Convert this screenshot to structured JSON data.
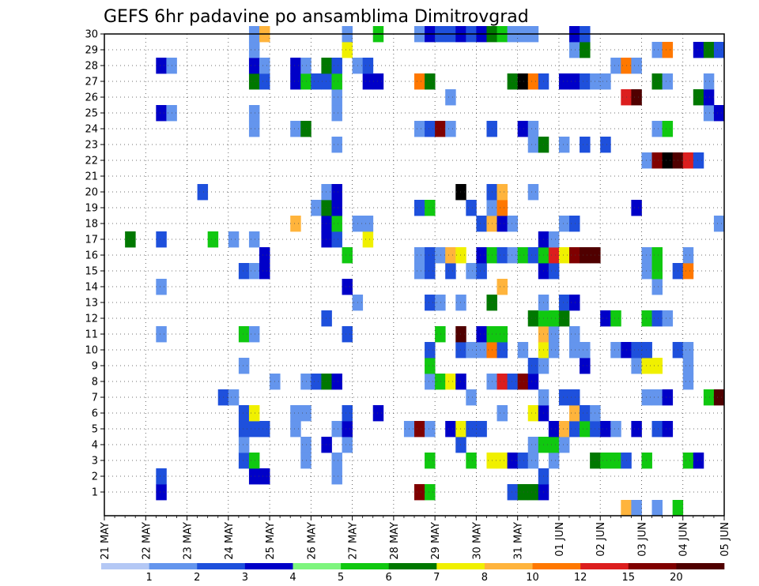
{
  "chart_data": {
    "type": "heatmap",
    "title": "GEFS 6hr padavine po ansamblima Dimitrovgrad",
    "xlabel": "",
    "ylabel": "",
    "x_ticks": [
      "21 MAY",
      "22 MAY",
      "23 MAY",
      "24 MAY",
      "25 MAY",
      "26 MAY",
      "27 MAY",
      "28 MAY",
      "29 MAY",
      "30 MAY",
      "31 MAY",
      "01 JUN",
      "02 JUN",
      "03 JUN",
      "04 JUN",
      "05 JUN"
    ],
    "y_ticks": [
      1,
      2,
      3,
      4,
      5,
      6,
      7,
      8,
      9,
      10,
      11,
      12,
      13,
      14,
      15,
      16,
      17,
      18,
      19,
      20,
      21,
      22,
      23,
      24,
      25,
      26,
      27,
      28,
      29,
      30
    ],
    "x_range_steps": [
      0,
      60
    ],
    "y_range": [
      0,
      30
    ],
    "legend_levels": [
      "1",
      "2",
      "3",
      "4",
      "5",
      "6",
      "7",
      "8",
      "10",
      "12",
      "15",
      "20"
    ],
    "legend_colors": [
      "#b4c8f5",
      "#6495ed",
      "#1e50dc",
      "#0000c8",
      "#7ef57e",
      "#10c810",
      "#007800",
      "#f0f000",
      "#ffb43c",
      "#ff7800",
      "#dc1e1e",
      "#800000",
      "#500000"
    ],
    "grid": true,
    "cells": [
      [
        6,
        1,
        3
      ],
      [
        31,
        1,
        11
      ],
      [
        32,
        1,
        5
      ],
      [
        40,
        1,
        2
      ],
      [
        41,
        1,
        6
      ],
      [
        42,
        1,
        6
      ],
      [
        43,
        1,
        3
      ],
      [
        6,
        2,
        2
      ],
      [
        15,
        2,
        3
      ],
      [
        16,
        2,
        3
      ],
      [
        23,
        2,
        1
      ],
      [
        43,
        2,
        2
      ],
      [
        14,
        3,
        2
      ],
      [
        15,
        3,
        5
      ],
      [
        20,
        3,
        1
      ],
      [
        23,
        3,
        1
      ],
      [
        32,
        3,
        5
      ],
      [
        36,
        3,
        5
      ],
      [
        38,
        3,
        7
      ],
      [
        39,
        3,
        7
      ],
      [
        40,
        3,
        3
      ],
      [
        41,
        3,
        2
      ],
      [
        42,
        3,
        1
      ],
      [
        44,
        3,
        1
      ],
      [
        48,
        3,
        6
      ],
      [
        49,
        3,
        5
      ],
      [
        50,
        3,
        5
      ],
      [
        51,
        3,
        2
      ],
      [
        53,
        3,
        5
      ],
      [
        57,
        3,
        5
      ],
      [
        58,
        3,
        3
      ],
      [
        14,
        4,
        1
      ],
      [
        20,
        4,
        1
      ],
      [
        22,
        4,
        3
      ],
      [
        24,
        4,
        1
      ],
      [
        35,
        4,
        2
      ],
      [
        42,
        4,
        1
      ],
      [
        43,
        4,
        5
      ],
      [
        44,
        4,
        5
      ],
      [
        45,
        4,
        1
      ],
      [
        14,
        5,
        2
      ],
      [
        15,
        5,
        2
      ],
      [
        16,
        5,
        2
      ],
      [
        19,
        5,
        1
      ],
      [
        23,
        5,
        1
      ],
      [
        24,
        5,
        3
      ],
      [
        30,
        5,
        1
      ],
      [
        31,
        5,
        11
      ],
      [
        32,
        5,
        1
      ],
      [
        34,
        5,
        3
      ],
      [
        35,
        5,
        7
      ],
      [
        36,
        5,
        2
      ],
      [
        37,
        5,
        2
      ],
      [
        44,
        5,
        3
      ],
      [
        45,
        5,
        8
      ],
      [
        46,
        5,
        2
      ],
      [
        47,
        5,
        5
      ],
      [
        48,
        5,
        2
      ],
      [
        49,
        5,
        3
      ],
      [
        50,
        5,
        1
      ],
      [
        52,
        5,
        3
      ],
      [
        54,
        5,
        2
      ],
      [
        55,
        5,
        3
      ],
      [
        14,
        6,
        2
      ],
      [
        15,
        6,
        7
      ],
      [
        19,
        6,
        1
      ],
      [
        20,
        6,
        1
      ],
      [
        24,
        6,
        2
      ],
      [
        27,
        6,
        3
      ],
      [
        39,
        6,
        1
      ],
      [
        42,
        6,
        7
      ],
      [
        43,
        6,
        3
      ],
      [
        46,
        6,
        8
      ],
      [
        47,
        6,
        2
      ],
      [
        48,
        6,
        1
      ],
      [
        12,
        7,
        2
      ],
      [
        13,
        7,
        1
      ],
      [
        36,
        7,
        1
      ],
      [
        43,
        7,
        1
      ],
      [
        45,
        7,
        2
      ],
      [
        46,
        7,
        2
      ],
      [
        53,
        7,
        1
      ],
      [
        54,
        7,
        1
      ],
      [
        55,
        7,
        3
      ],
      [
        59,
        7,
        5
      ],
      [
        60,
        7,
        12
      ],
      [
        17,
        8,
        1
      ],
      [
        20,
        8,
        1
      ],
      [
        21,
        8,
        2
      ],
      [
        22,
        8,
        6
      ],
      [
        23,
        8,
        3
      ],
      [
        32,
        8,
        1
      ],
      [
        33,
        8,
        5
      ],
      [
        34,
        8,
        7
      ],
      [
        35,
        8,
        3
      ],
      [
        38,
        8,
        1
      ],
      [
        39,
        8,
        10
      ],
      [
        40,
        8,
        2
      ],
      [
        41,
        8,
        11
      ],
      [
        42,
        8,
        3
      ],
      [
        57,
        8,
        1
      ],
      [
        14,
        9,
        1
      ],
      [
        32,
        9,
        5
      ],
      [
        42,
        9,
        2
      ],
      [
        43,
        9,
        1
      ],
      [
        47,
        9,
        3
      ],
      [
        52,
        9,
        1
      ],
      [
        53,
        9,
        7
      ],
      [
        54,
        9,
        7
      ],
      [
        57,
        9,
        1
      ],
      [
        32,
        10,
        2
      ],
      [
        35,
        10,
        2
      ],
      [
        36,
        10,
        1
      ],
      [
        37,
        10,
        1
      ],
      [
        38,
        10,
        9
      ],
      [
        39,
        10,
        2
      ],
      [
        41,
        10,
        1
      ],
      [
        43,
        10,
        7
      ],
      [
        44,
        10,
        1
      ],
      [
        46,
        10,
        1
      ],
      [
        47,
        10,
        1
      ],
      [
        50,
        10,
        1
      ],
      [
        51,
        10,
        3
      ],
      [
        52,
        10,
        2
      ],
      [
        53,
        10,
        2
      ],
      [
        56,
        10,
        2
      ],
      [
        57,
        10,
        1
      ],
      [
        6,
        11,
        1
      ],
      [
        14,
        11,
        5
      ],
      [
        15,
        11,
        1
      ],
      [
        24,
        11,
        2
      ],
      [
        33,
        11,
        5
      ],
      [
        35,
        11,
        12
      ],
      [
        37,
        11,
        3
      ],
      [
        38,
        11,
        5
      ],
      [
        39,
        11,
        5
      ],
      [
        43,
        11,
        8
      ],
      [
        44,
        11,
        1
      ],
      [
        46,
        11,
        1
      ],
      [
        22,
        12,
        2
      ],
      [
        42,
        12,
        6
      ],
      [
        43,
        12,
        5
      ],
      [
        44,
        12,
        5
      ],
      [
        45,
        12,
        6
      ],
      [
        49,
        12,
        3
      ],
      [
        50,
        12,
        5
      ],
      [
        53,
        12,
        5
      ],
      [
        54,
        12,
        2
      ],
      [
        55,
        12,
        1
      ],
      [
        25,
        13,
        1
      ],
      [
        32,
        13,
        2
      ],
      [
        33,
        13,
        1
      ],
      [
        35,
        13,
        1
      ],
      [
        38,
        13,
        6
      ],
      [
        43,
        13,
        1
      ],
      [
        45,
        13,
        2
      ],
      [
        46,
        13,
        3
      ],
      [
        6,
        14,
        1
      ],
      [
        24,
        14,
        3
      ],
      [
        39,
        14,
        8
      ],
      [
        54,
        14,
        1
      ],
      [
        14,
        15,
        2
      ],
      [
        15,
        15,
        1
      ],
      [
        16,
        15,
        3
      ],
      [
        31,
        15,
        1
      ],
      [
        32,
        15,
        2
      ],
      [
        34,
        15,
        2
      ],
      [
        36,
        15,
        1
      ],
      [
        37,
        15,
        2
      ],
      [
        43,
        15,
        3
      ],
      [
        44,
        15,
        2
      ],
      [
        53,
        15,
        1
      ],
      [
        54,
        15,
        5
      ],
      [
        56,
        15,
        2
      ],
      [
        57,
        15,
        9
      ],
      [
        16,
        16,
        3
      ],
      [
        24,
        16,
        5
      ],
      [
        31,
        16,
        1
      ],
      [
        32,
        16,
        2
      ],
      [
        33,
        16,
        1
      ],
      [
        34,
        16,
        8
      ],
      [
        35,
        16,
        7
      ],
      [
        37,
        16,
        3
      ],
      [
        38,
        16,
        5
      ],
      [
        39,
        16,
        2
      ],
      [
        40,
        16,
        1
      ],
      [
        41,
        16,
        5
      ],
      [
        42,
        16,
        2
      ],
      [
        43,
        16,
        5
      ],
      [
        44,
        16,
        10
      ],
      [
        45,
        16,
        7
      ],
      [
        46,
        16,
        11
      ],
      [
        47,
        16,
        12
      ],
      [
        48,
        16,
        12
      ],
      [
        53,
        16,
        1
      ],
      [
        54,
        16,
        5
      ],
      [
        57,
        16,
        1
      ],
      [
        3,
        17,
        6
      ],
      [
        6,
        17,
        2
      ],
      [
        11,
        17,
        5
      ],
      [
        13,
        17,
        1
      ],
      [
        15,
        17,
        1
      ],
      [
        22,
        17,
        3
      ],
      [
        23,
        17,
        2
      ],
      [
        26,
        17,
        7
      ],
      [
        43,
        17,
        3
      ],
      [
        44,
        17,
        1
      ],
      [
        19,
        18,
        8
      ],
      [
        22,
        18,
        3
      ],
      [
        23,
        18,
        5
      ],
      [
        25,
        18,
        1
      ],
      [
        26,
        18,
        1
      ],
      [
        37,
        18,
        2
      ],
      [
        38,
        18,
        8
      ],
      [
        39,
        18,
        3
      ],
      [
        40,
        18,
        1
      ],
      [
        45,
        18,
        1
      ],
      [
        46,
        18,
        2
      ],
      [
        60,
        18,
        1
      ],
      [
        21,
        19,
        1
      ],
      [
        22,
        19,
        6
      ],
      [
        23,
        19,
        3
      ],
      [
        31,
        19,
        2
      ],
      [
        32,
        19,
        5
      ],
      [
        36,
        19,
        2
      ],
      [
        38,
        19,
        1
      ],
      [
        39,
        19,
        9
      ],
      [
        52,
        19,
        3
      ],
      [
        10,
        20,
        2
      ],
      [
        22,
        20,
        1
      ],
      [
        23,
        20,
        3
      ],
      [
        35,
        20,
        13
      ],
      [
        38,
        20,
        2
      ],
      [
        39,
        20,
        8
      ],
      [
        42,
        20,
        1
      ],
      [
        53,
        22,
        1
      ],
      [
        54,
        22,
        11
      ],
      [
        55,
        22,
        13
      ],
      [
        56,
        22,
        12
      ],
      [
        57,
        22,
        10
      ],
      [
        58,
        22,
        2
      ],
      [
        23,
        23,
        1
      ],
      [
        42,
        23,
        1
      ],
      [
        43,
        23,
        6
      ],
      [
        45,
        23,
        1
      ],
      [
        47,
        23,
        2
      ],
      [
        49,
        23,
        2
      ],
      [
        15,
        24,
        1
      ],
      [
        19,
        24,
        1
      ],
      [
        20,
        24,
        6
      ],
      [
        31,
        24,
        1
      ],
      [
        32,
        24,
        2
      ],
      [
        33,
        24,
        11
      ],
      [
        34,
        24,
        1
      ],
      [
        38,
        24,
        2
      ],
      [
        41,
        24,
        3
      ],
      [
        42,
        24,
        1
      ],
      [
        54,
        24,
        1
      ],
      [
        55,
        24,
        5
      ],
      [
        6,
        25,
        3
      ],
      [
        7,
        25,
        1
      ],
      [
        15,
        25,
        1
      ],
      [
        23,
        25,
        1
      ],
      [
        59,
        25,
        1
      ],
      [
        60,
        25,
        3
      ],
      [
        23,
        26,
        1
      ],
      [
        34,
        26,
        1
      ],
      [
        51,
        26,
        10
      ],
      [
        52,
        26,
        12
      ],
      [
        58,
        26,
        6
      ],
      [
        59,
        26,
        3
      ],
      [
        15,
        27,
        6
      ],
      [
        16,
        27,
        2
      ],
      [
        19,
        27,
        3
      ],
      [
        20,
        27,
        5
      ],
      [
        21,
        27,
        2
      ],
      [
        22,
        27,
        2
      ],
      [
        23,
        27,
        5
      ],
      [
        26,
        27,
        3
      ],
      [
        27,
        27,
        3
      ],
      [
        31,
        27,
        9
      ],
      [
        32,
        27,
        6
      ],
      [
        40,
        27,
        6
      ],
      [
        41,
        27,
        13
      ],
      [
        42,
        27,
        9
      ],
      [
        43,
        27,
        2
      ],
      [
        45,
        27,
        3
      ],
      [
        46,
        27,
        3
      ],
      [
        47,
        27,
        2
      ],
      [
        48,
        27,
        1
      ],
      [
        49,
        27,
        1
      ],
      [
        54,
        27,
        6
      ],
      [
        55,
        27,
        1
      ],
      [
        59,
        27,
        1
      ],
      [
        6,
        28,
        3
      ],
      [
        7,
        28,
        1
      ],
      [
        15,
        28,
        3
      ],
      [
        16,
        28,
        1
      ],
      [
        19,
        28,
        3
      ],
      [
        20,
        28,
        1
      ],
      [
        22,
        28,
        6
      ],
      [
        23,
        28,
        2
      ],
      [
        25,
        28,
        1
      ],
      [
        26,
        28,
        2
      ],
      [
        50,
        28,
        1
      ],
      [
        51,
        28,
        9
      ],
      [
        52,
        28,
        1
      ],
      [
        15,
        29,
        1
      ],
      [
        24,
        29,
        7
      ],
      [
        46,
        29,
        1
      ],
      [
        47,
        29,
        6
      ],
      [
        54,
        29,
        1
      ],
      [
        55,
        29,
        9
      ],
      [
        58,
        29,
        3
      ],
      [
        59,
        29,
        6
      ],
      [
        60,
        29,
        2
      ],
      [
        15,
        30,
        1
      ],
      [
        16,
        30,
        8
      ],
      [
        24,
        30,
        1
      ],
      [
        27,
        30,
        5
      ],
      [
        31,
        30,
        1
      ],
      [
        32,
        30,
        3
      ],
      [
        33,
        30,
        2
      ],
      [
        34,
        30,
        2
      ],
      [
        35,
        30,
        3
      ],
      [
        36,
        30,
        2
      ],
      [
        37,
        30,
        3
      ],
      [
        38,
        30,
        6
      ],
      [
        39,
        30,
        5
      ],
      [
        40,
        30,
        1
      ],
      [
        41,
        30,
        1
      ],
      [
        42,
        30,
        1
      ],
      [
        46,
        30,
        3
      ],
      [
        47,
        30,
        2
      ],
      [
        51,
        0,
        8
      ],
      [
        52,
        0,
        1
      ],
      [
        54,
        0,
        1
      ],
      [
        56,
        0,
        5
      ]
    ]
  }
}
